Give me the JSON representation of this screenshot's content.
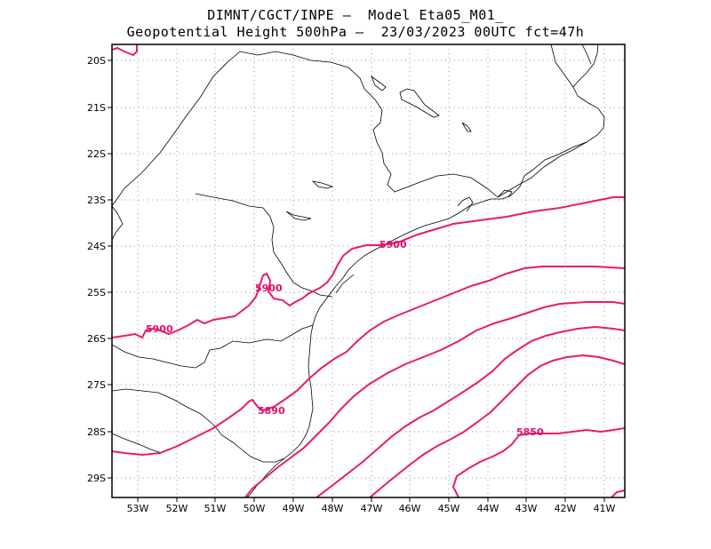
{
  "header": {
    "line1": "DIMNT/CGCT/INPE –  Model Eta05_M01_",
    "line2": "Geopotential Height 500hPa –  23/03/2023 00UTC fct=47h"
  },
  "colors": {
    "contour": "#e91a6f",
    "coast": "#000000",
    "grid": "#9a9a9a"
  },
  "axes": {
    "lon_labels": [
      "53W",
      "52W",
      "51W",
      "50W",
      "49W",
      "48W",
      "47W",
      "46W",
      "45W",
      "44W",
      "43W",
      "42W",
      "41W"
    ],
    "lat_labels": [
      "20S",
      "21S",
      "22S",
      "23S",
      "24S",
      "25S",
      "26S",
      "27S",
      "28S",
      "29S"
    ]
  },
  "contour_labels": [
    {
      "id": "label-5900-a",
      "text": "5900"
    },
    {
      "id": "label-5900-b",
      "text": "5900"
    },
    {
      "id": "label-5900-c",
      "text": "5900"
    },
    {
      "id": "label-5890",
      "text": "5890"
    },
    {
      "id": "label-5850",
      "text": "5850"
    }
  ]
}
